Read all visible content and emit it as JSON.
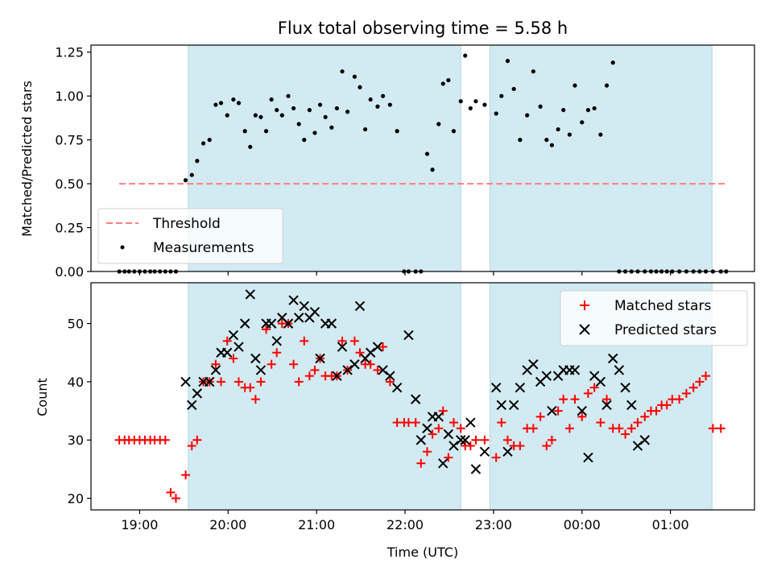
{
  "chart_data": [
    {
      "type": "scatter",
      "panel": "top",
      "title": "Flux total observing time = 5.58 h",
      "xlabel": "",
      "ylabel": "Matched/Predicted stars",
      "ylim": [
        0,
        1.29
      ],
      "yticks": [
        0.0,
        0.25,
        0.5,
        0.75,
        1.0,
        1.25
      ],
      "ytick_labels": [
        "0.00",
        "0.25",
        "0.50",
        "0.75",
        "1.00",
        "1.25"
      ],
      "x_unit_hours_from_19": true,
      "shaded_intervals": [
        [
          0.55,
          3.63
        ],
        [
          3.96,
          6.47
        ]
      ],
      "shade_color": "#add8e6",
      "threshold": {
        "name": "Threshold",
        "y": 0.5,
        "x_range": [
          -0.23,
          6.62
        ],
        "color": "#ff7f7f"
      },
      "legend": {
        "placement": "lower-left",
        "entries": [
          "Threshold",
          "Measurements"
        ]
      },
      "series": [
        {
          "name": "Measurements",
          "color": "#000000",
          "x": [
            -0.23,
            -0.17,
            -0.12,
            -0.06,
            0.0,
            0.06,
            0.12,
            0.17,
            0.23,
            0.29,
            0.35,
            0.41,
            0.52,
            0.59,
            0.65,
            0.72,
            0.79,
            0.86,
            0.92,
            0.99,
            1.06,
            1.12,
            1.19,
            1.25,
            1.31,
            1.37,
            1.43,
            1.49,
            1.55,
            1.61,
            1.68,
            1.74,
            1.8,
            1.86,
            1.92,
            1.98,
            2.04,
            2.1,
            2.17,
            2.23,
            2.29,
            2.35,
            2.43,
            2.49,
            2.55,
            2.61,
            2.69,
            2.75,
            2.83,
            2.91,
            2.99,
            3.04,
            3.12,
            3.18,
            3.25,
            3.31,
            3.38,
            3.43,
            3.49,
            3.55,
            3.63,
            3.68,
            3.74,
            3.8,
            3.9,
            4.03,
            4.09,
            4.16,
            4.23,
            4.3,
            4.38,
            4.45,
            4.53,
            4.6,
            4.66,
            4.73,
            4.79,
            4.86,
            4.92,
            5.0,
            5.07,
            5.14,
            5.21,
            5.28,
            5.35,
            5.42,
            5.49,
            5.56,
            5.63,
            5.71,
            5.78,
            5.84,
            5.9,
            5.96,
            6.02,
            6.1,
            6.18,
            6.26,
            6.33,
            6.4,
            6.48,
            6.57,
            6.63
          ],
          "y": [
            0,
            0,
            0,
            0,
            0,
            0,
            0,
            0,
            0,
            0,
            0,
            0,
            0.52,
            0.55,
            0.63,
            0.73,
            0.75,
            0.95,
            0.96,
            0.89,
            0.98,
            0.96,
            0.8,
            0.71,
            0.89,
            0.88,
            0.8,
            0.98,
            0.92,
            0.89,
            1.0,
            0.93,
            0.84,
            0.75,
            0.92,
            0.79,
            0.95,
            0.88,
            0.82,
            0.93,
            1.14,
            0.91,
            1.11,
            1.05,
            0.81,
            0.98,
            0.94,
            1.0,
            0.95,
            0.8,
            0,
            0,
            0,
            0,
            0.67,
            0.58,
            0.84,
            1.07,
            1.09,
            0.8,
            0.97,
            1.23,
            0.93,
            0.97,
            0.95,
            0.9,
            1.0,
            1.2,
            1.04,
            0.75,
            0.89,
            1.14,
            0.94,
            0.75,
            0.72,
            0.81,
            0.92,
            0.78,
            1.06,
            0.85,
            0.92,
            0.93,
            0.78,
            1.06,
            1.19,
            0,
            0,
            0,
            0,
            0,
            0,
            0,
            0,
            0,
            0,
            0,
            0,
            0,
            0,
            0,
            0,
            0,
            0
          ]
        }
      ]
    },
    {
      "type": "scatter",
      "panel": "bottom",
      "title": "",
      "xlabel": "Time (UTC)",
      "ylabel": "Count",
      "ylim": [
        18,
        57
      ],
      "yticks": [
        20,
        30,
        40,
        50
      ],
      "ytick_labels": [
        "20",
        "30",
        "40",
        "50"
      ],
      "xlim": [
        -0.55,
        6.95
      ],
      "xticks": [
        0,
        1,
        2,
        3,
        4,
        5,
        6
      ],
      "xtick_labels": [
        "19:00",
        "20:00",
        "21:00",
        "22:00",
        "23:00",
        "00:00",
        "01:00"
      ],
      "shaded_intervals": [
        [
          0.55,
          3.63
        ],
        [
          3.96,
          6.47
        ]
      ],
      "legend": {
        "placement": "upper-right",
        "entries": [
          "Matched stars",
          "Predicted stars"
        ]
      },
      "series": [
        {
          "name": "Matched stars",
          "marker": "plus",
          "color": "#ff0000",
          "x": [
            -0.23,
            -0.17,
            -0.12,
            -0.06,
            0.0,
            0.06,
            0.12,
            0.17,
            0.23,
            0.29,
            0.35,
            0.41,
            0.52,
            0.59,
            0.65,
            0.72,
            0.79,
            0.86,
            0.92,
            0.99,
            1.06,
            1.12,
            1.19,
            1.25,
            1.31,
            1.37,
            1.43,
            1.49,
            1.55,
            1.61,
            1.68,
            1.74,
            1.8,
            1.86,
            1.92,
            1.98,
            2.04,
            2.1,
            2.17,
            2.23,
            2.29,
            2.35,
            2.43,
            2.49,
            2.55,
            2.61,
            2.69,
            2.75,
            2.83,
            2.91,
            2.99,
            3.04,
            3.12,
            3.18,
            3.25,
            3.31,
            3.38,
            3.43,
            3.49,
            3.55,
            3.63,
            3.68,
            3.74,
            3.8,
            3.9,
            4.03,
            4.09,
            4.16,
            4.23,
            4.3,
            4.38,
            4.45,
            4.53,
            4.6,
            4.66,
            4.73,
            4.79,
            4.86,
            4.92,
            5.0,
            5.07,
            5.14,
            5.21,
            5.28,
            5.35,
            5.42,
            5.49,
            5.56,
            5.63,
            5.71,
            5.78,
            5.84,
            5.9,
            5.96,
            6.02,
            6.1,
            6.18,
            6.26,
            6.33,
            6.4,
            6.48,
            6.57
          ],
          "y": [
            30,
            30,
            30,
            30,
            30,
            30,
            30,
            30,
            30,
            30,
            21,
            20,
            24,
            29,
            30,
            40,
            40,
            43,
            40,
            47,
            44,
            40,
            39,
            39,
            37,
            40,
            49,
            43,
            45,
            50,
            50,
            43,
            40,
            47,
            41,
            42,
            44,
            41,
            41,
            41,
            47,
            42,
            47,
            45,
            43,
            43,
            42,
            46,
            40,
            33,
            33,
            33,
            33,
            26,
            28,
            31,
            32,
            35,
            27,
            33,
            32,
            29,
            29,
            30,
            30,
            27,
            33,
            30,
            29,
            29,
            32,
            32,
            34,
            29,
            30,
            35,
            37,
            32,
            37,
            34,
            38,
            39,
            33,
            37,
            32,
            32,
            31,
            32,
            33,
            34,
            35,
            35,
            36,
            36,
            37,
            37,
            38,
            39,
            40,
            41,
            32,
            32
          ]
        },
        {
          "name": "Predicted stars",
          "marker": "x",
          "color": "#000000",
          "x": [
            0.52,
            0.59,
            0.65,
            0.72,
            0.79,
            0.86,
            0.92,
            0.99,
            1.06,
            1.12,
            1.19,
            1.25,
            1.31,
            1.37,
            1.43,
            1.49,
            1.55,
            1.61,
            1.68,
            1.74,
            1.8,
            1.86,
            1.92,
            1.98,
            2.04,
            2.1,
            2.17,
            2.23,
            2.29,
            2.35,
            2.43,
            2.49,
            2.55,
            2.61,
            2.69,
            2.75,
            2.83,
            2.91,
            3.04,
            3.12,
            3.18,
            3.25,
            3.31,
            3.38,
            3.43,
            3.49,
            3.55,
            3.63,
            3.68,
            3.74,
            3.8,
            3.9,
            4.03,
            4.09,
            4.16,
            4.23,
            4.3,
            4.38,
            4.45,
            4.53,
            4.6,
            4.66,
            4.73,
            4.79,
            4.86,
            4.92,
            5.0,
            5.07,
            5.14,
            5.21,
            5.28,
            5.35,
            5.42,
            5.49,
            5.56,
            5.63,
            5.71
          ],
          "y": [
            40,
            36,
            38,
            40,
            40,
            42,
            45,
            45,
            48,
            46,
            50,
            55,
            44,
            42,
            50,
            50,
            47,
            51,
            50,
            54,
            51,
            53,
            51,
            52,
            44,
            50,
            50,
            41,
            46,
            42,
            43,
            53,
            44,
            45,
            46,
            42,
            41,
            39,
            48,
            37,
            30,
            32,
            34,
            34,
            26,
            31,
            29,
            30,
            30,
            33,
            25,
            28,
            39,
            36,
            28,
            36,
            39,
            42,
            43,
            40,
            41,
            35,
            41,
            42,
            42,
            42,
            35,
            27,
            41,
            40,
            36,
            44,
            42,
            39,
            36,
            29,
            30
          ]
        }
      ]
    }
  ]
}
